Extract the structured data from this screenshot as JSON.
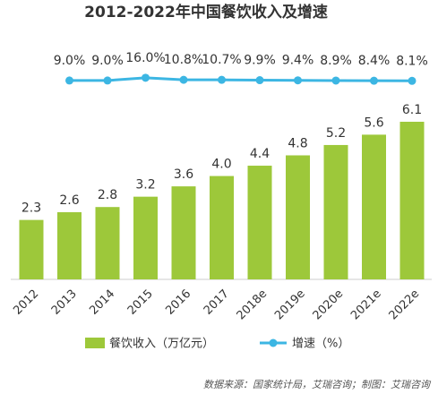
{
  "chart_data": {
    "type": "bar",
    "title": "2012-2022年中国餐饮收入及增速",
    "categories": [
      "2012",
      "2013",
      "2014",
      "2015",
      "2016",
      "2017",
      "2018e",
      "2019e",
      "2020e",
      "2021e",
      "2022e"
    ],
    "series": [
      {
        "name": "餐饮收入（万亿元）",
        "color": "#9dc83a",
        "type": "bar",
        "values": [
          2.3,
          2.6,
          2.8,
          3.2,
          3.6,
          4.0,
          4.4,
          4.8,
          5.2,
          5.6,
          6.1
        ],
        "value_labels": [
          "2.3",
          "2.6",
          "2.8",
          "3.2",
          "3.6",
          "4.0",
          "4.4",
          "4.8",
          "5.2",
          "5.6",
          "6.1"
        ]
      },
      {
        "name": "增速（%）",
        "color": "#3cb6e3",
        "type": "line",
        "axis": "y2",
        "values": [
          null,
          9.0,
          9.0,
          16.0,
          10.8,
          10.7,
          9.9,
          9.4,
          8.9,
          8.4,
          8.1
        ],
        "value_labels": [
          null,
          "9.0%",
          "9.0%",
          "16.0%",
          "10.8%",
          "10.7%",
          "9.9%",
          "9.4%",
          "8.9%",
          "8.4%",
          "8.1%"
        ]
      }
    ],
    "ylim": [
      0,
      7
    ],
    "y2lim": [
      -540,
      146
    ],
    "source": "数据来源：国家统计局，艾瑞咨询；制图：艾瑞咨询"
  }
}
